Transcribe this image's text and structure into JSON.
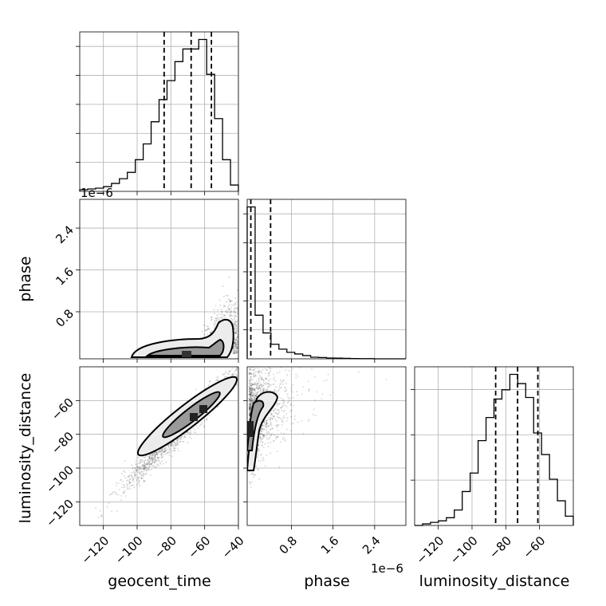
{
  "chart_data": {
    "type": "corner",
    "parameters": [
      "geocent_time",
      "phase",
      "luminosity_distance"
    ],
    "axis_labels": {
      "x": [
        "geocent_time",
        "phase",
        "luminosity_distance"
      ],
      "y": [
        "phase",
        "luminosity_distance"
      ]
    },
    "ranges": {
      "geocent_time": [
        -134,
        -40
      ],
      "phase": [
        -0.05,
        3.0
      ],
      "luminosity_distance": [
        -134,
        -40
      ],
      "phase_vs_geocent_y": [
        -0.1,
        2.95
      ],
      "lum_vs_geocent_y": [
        -134,
        -40
      ]
    },
    "ticks": {
      "geocent_time": [
        -120,
        -100,
        -80,
        -60,
        -40
      ],
      "phase": [
        0.8,
        1.6,
        2.4
      ],
      "luminosity_distance": [
        -120,
        -100,
        -80,
        -60
      ],
      "phase_y": [
        0.8,
        1.6,
        2.4
      ],
      "luminosity_distance_y": [
        -60,
        -80,
        -100,
        -120
      ]
    },
    "tick_labels": {
      "geocent_time": [
        "−120",
        "−100",
        "−80",
        "−60",
        "−40"
      ],
      "phase": [
        "0.8",
        "1.6",
        "2.4"
      ],
      "luminosity_distance": [
        "−120",
        "−100",
        "−80",
        "−60"
      ],
      "phase_y": [
        "0.8",
        "1.6",
        "2.4"
      ],
      "luminosity_distance_y": [
        "−60",
        "−80",
        "−100",
        "−120"
      ]
    },
    "offset_text": {
      "phase_y": "1e−6",
      "phase_x": "1e−6"
    },
    "histograms": {
      "geocent_time": {
        "edges": [
          -134,
          -129.3,
          -124.6,
          -119.9,
          -115.2,
          -110.5,
          -105.8,
          -101.1,
          -96.4,
          -91.7,
          -87,
          -82.3,
          -77.6,
          -72.9,
          -68.2,
          -63.5,
          -58.8,
          -54.1,
          -49.4,
          -44.7,
          -40
        ],
        "counts": [
          0.01,
          0.015,
          0.02,
          0.03,
          0.05,
          0.08,
          0.12,
          0.2,
          0.3,
          0.44,
          0.58,
          0.7,
          0.82,
          0.9,
          0.9,
          0.96,
          0.74,
          0.46,
          0.2,
          0.04
        ],
        "quantiles": [
          -84,
          -68,
          -56
        ]
      },
      "phase": {
        "edges": [
          -0.05,
          0.1025,
          0.255,
          0.4075,
          0.56,
          0.7125,
          0.865,
          1.0175,
          1.17,
          1.3225,
          1.475,
          1.6275,
          1.78,
          1.9325,
          2.085,
          2.2375,
          2.39,
          2.5425,
          2.695,
          2.8475,
          3.0
        ],
        "counts": [
          0.94,
          0.27,
          0.16,
          0.09,
          0.06,
          0.04,
          0.03,
          0.02,
          0.01,
          0.008,
          0.005,
          0.004,
          0.003,
          0.002,
          0.001,
          0.001,
          0.0,
          0.0,
          0.0,
          0.0
        ],
        "quantiles": [
          0.02,
          0.4
        ]
      },
      "luminosity_distance": {
        "edges": [
          -134,
          -129.3,
          -124.6,
          -119.9,
          -115.2,
          -110.5,
          -105.8,
          -101.1,
          -96.4,
          -91.7,
          -87,
          -82.3,
          -77.6,
          -72.9,
          -68.2,
          -63.5,
          -58.8,
          -54.1,
          -49.4,
          -44.7,
          -40
        ],
        "counts": [
          0.0,
          0.01,
          0.02,
          0.03,
          0.05,
          0.1,
          0.22,
          0.34,
          0.55,
          0.7,
          0.82,
          0.88,
          0.98,
          0.92,
          0.83,
          0.6,
          0.46,
          0.3,
          0.16,
          0.06
        ],
        "quantiles": [
          -86,
          -73,
          -61
        ]
      }
    },
    "scatter_cloud": {
      "phase_vs_geocent_time": {
        "x_mean": -50,
        "x_sd": 8,
        "y_max": 1.5
      },
      "luminosity_distance_vs_geocent_time": {
        "slope": 1.0,
        "x_mean": -72,
        "x_sd": 18,
        "y_sd": 4
      },
      "luminosity_distance_vs_phase": {
        "y_mean": -70,
        "y_sd": 14
      }
    },
    "grid": true
  }
}
